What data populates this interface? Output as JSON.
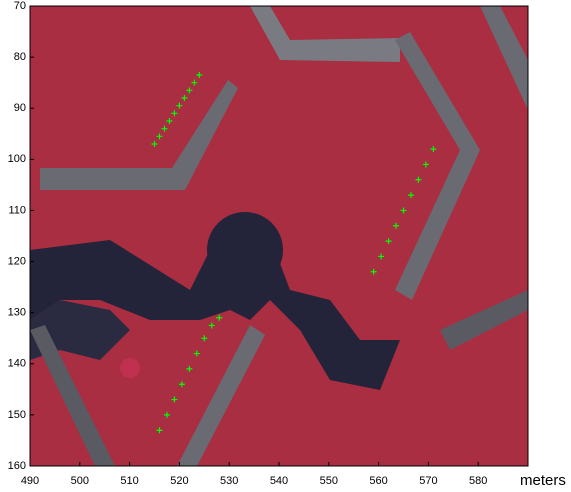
{
  "chart_data": {
    "type": "scatter",
    "x_label": "meters",
    "xlim": [
      490,
      590
    ],
    "ylim": [
      70,
      160
    ],
    "y_reversed": true,
    "xticks": [
      490,
      500,
      510,
      520,
      530,
      540,
      550,
      560,
      570,
      580
    ],
    "yticks": [
      70,
      80,
      90,
      100,
      110,
      120,
      130,
      140,
      150,
      160
    ],
    "x": [
      515,
      516,
      517,
      518,
      519,
      520,
      521,
      522,
      523,
      524,
      559,
      560.5,
      562,
      563.5,
      565,
      566.5,
      568,
      569.5,
      571,
      516,
      517.5,
      519,
      520.5,
      522,
      523.5,
      525,
      526.5,
      528
    ],
    "series": [
      {
        "color": "#00ff00",
        "values": [
          97,
          95.5,
          94,
          92.5,
          91,
          89.5,
          88,
          86.5,
          85,
          83.5,
          122,
          119,
          116,
          113,
          110,
          107,
          104,
          101,
          98,
          153,
          150,
          147,
          144,
          141,
          138,
          135,
          132.5,
          131
        ]
      }
    ]
  }
}
